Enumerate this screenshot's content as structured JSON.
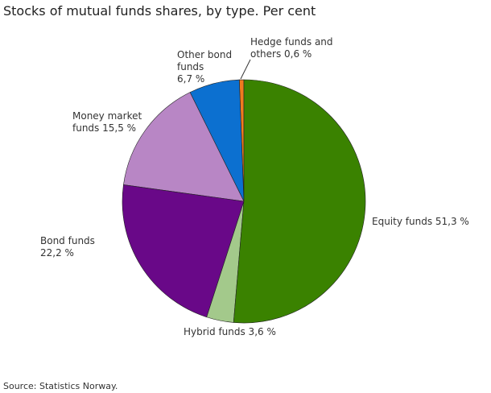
{
  "chart_data": {
    "type": "pie",
    "title": "Stocks of mutual funds shares, by type. Per cent",
    "source": "Source: Statistics Norway.",
    "slices": [
      {
        "name": "Equity funds",
        "value": 51.3,
        "label": "Equity funds 51,3 %",
        "color": "#3a8200"
      },
      {
        "name": "Hybrid funds",
        "value": 3.6,
        "label": "Hybrid funds 3,6 %",
        "color": "#a3c98b"
      },
      {
        "name": "Bond funds",
        "value": 22.2,
        "label": "Bond funds\n22,2 %",
        "color": "#690888"
      },
      {
        "name": "Money market funds",
        "value": 15.5,
        "label": "Money market\nfunds 15,5 %",
        "color": "#b886c5"
      },
      {
        "name": "Other bond funds",
        "value": 6.7,
        "label": "Other bond\nfunds\n6,7 %",
        "color": "#0c70d0"
      },
      {
        "name": "Hedge funds and others",
        "value": 0.6,
        "label": "Hedge funds and\nothers 0,6 %",
        "color": "#f07b1f"
      }
    ]
  }
}
